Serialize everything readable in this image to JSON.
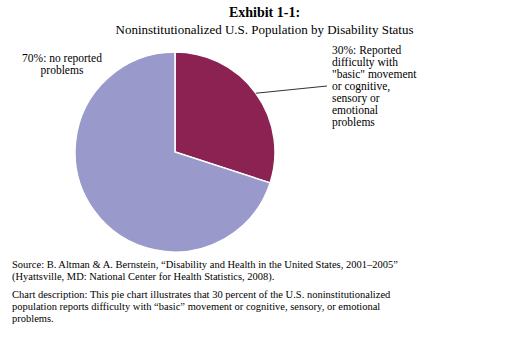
{
  "chart_data": {
    "type": "pie",
    "title": "Exhibit 1-1:",
    "subtitle": "Noninstitutionalized U.S. Population by Disability Status",
    "values": [
      30,
      70
    ],
    "colors": [
      "#8b2252",
      "#9999cc"
    ],
    "data_labels": true,
    "value_labels": [
      "30%: Reported\ndifficulty with\n\"basic\" movement\nor cognitive,\nsensory or\nemotional\nproblems",
      "70%: no reported\nproblems"
    ],
    "annotations": [
      "Source: B. Altman & A. Bernstein, “Disability and Health in the United States, 2001–2005”\n(Hyattsville, MD: National Center for Health Statistics, 2008).",
      "Chart description: This pie chart illustrates that 30 percent of the U.S. noninstitutionalized\npopulation reports difficulty with “basic” movement or cognitive, sensory, or emotional\nproblems."
    ]
  }
}
